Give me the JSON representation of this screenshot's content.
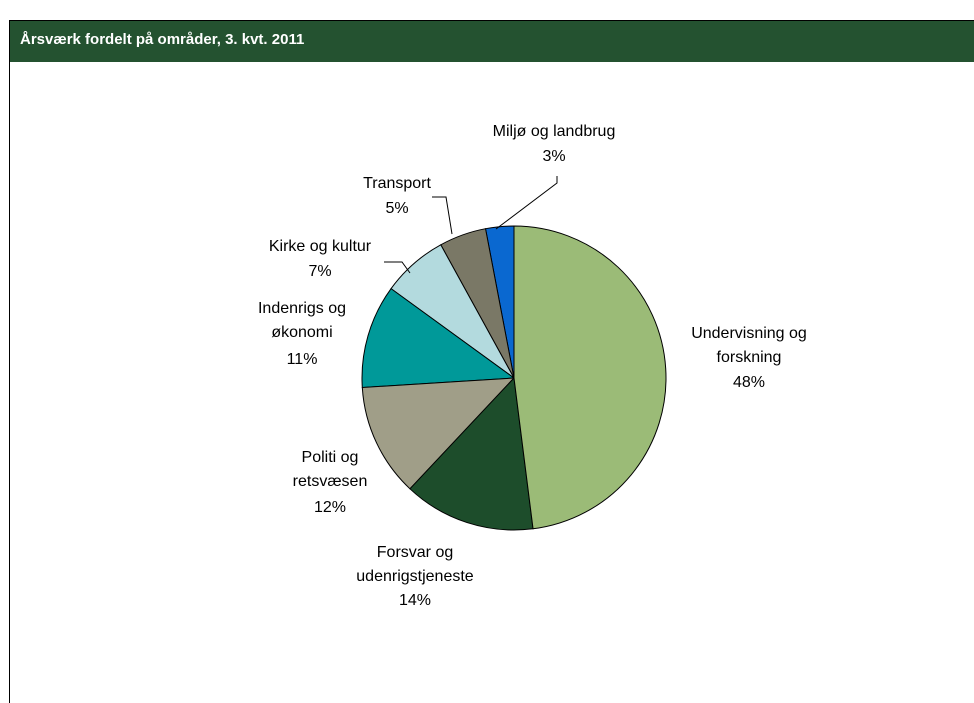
{
  "chart_data": {
    "type": "pie",
    "title": "Årsværk fordelt på områder, 3. kvt. 2011",
    "categories": [
      "Undervisning og forskning",
      "Forsvar og udenrigstjeneste",
      "Politi og retsvæsen",
      "Indenrigs og økonomi",
      "Kirke og kultur",
      "Transport",
      "Miljø og landbrug"
    ],
    "values": [
      48,
      14,
      12,
      11,
      7,
      5,
      3
    ],
    "value_labels": [
      "48%",
      "14%",
      "12%",
      "11%",
      "7%",
      "5%",
      "3%"
    ],
    "colors": [
      "#9bbb77",
      "#1d4d2b",
      "#a09e88",
      "#009999",
      "#b3dade",
      "#7a7866",
      "#0a68d0"
    ]
  }
}
